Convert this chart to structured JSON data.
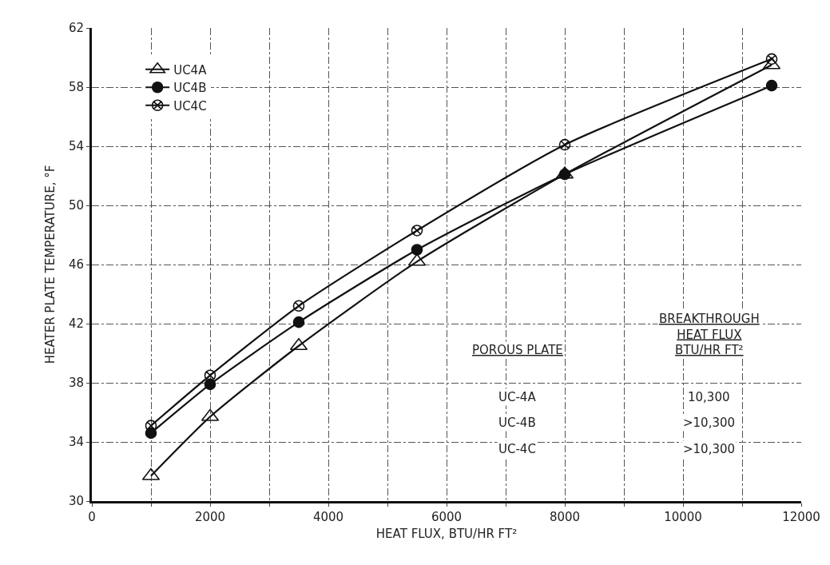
{
  "chart_data": {
    "type": "line",
    "xlabel": "HEAT FLUX, BTU/HR FT²",
    "ylabel": "HEATER PLATE TEMPERATURE, °F",
    "x": [
      1000,
      2000,
      3500,
      5500,
      8000,
      11500
    ],
    "series": [
      {
        "name": "UC4A",
        "color": "#111111",
        "marker": "triangle",
        "values": [
          31.7,
          35.7,
          40.5,
          46.2,
          52.1,
          59.5
        ]
      },
      {
        "name": "UC4B",
        "color": "#111111",
        "marker": "circle",
        "values": [
          34.6,
          37.9,
          42.1,
          47.0,
          52.1,
          58.1
        ]
      },
      {
        "name": "UC4C",
        "color": "#111111",
        "marker": "cross",
        "values": [
          35.1,
          38.5,
          43.2,
          48.3,
          54.1,
          59.9
        ]
      }
    ],
    "line_style": "solid",
    "grid": true,
    "legend": "top left",
    "xlim": [
      0,
      12000
    ],
    "xticks": [
      0,
      {
        "value": 1000,
        "label": null
      },
      2000,
      {
        "value": 3000,
        "label": null
      },
      4000,
      {
        "value": 5000,
        "label": null
      },
      6000,
      {
        "value": 7000,
        "label": null
      },
      8000,
      {
        "value": 9000,
        "label": null
      },
      10000,
      {
        "value": 11000,
        "label": null
      },
      12000
    ],
    "ylim": [
      30,
      62
    ],
    "yticks": [
      30,
      34,
      38,
      42,
      46,
      50,
      54,
      58,
      62
    ],
    "annotations": [
      "POROUS PLATE",
      "BREAKTHROUGH\nHEAT FLUX\nBTU/HR FT²",
      "UC-4A",
      "10,300",
      "UC-4B",
      ">10,300",
      "UC-4C",
      ">10,300"
    ]
  }
}
